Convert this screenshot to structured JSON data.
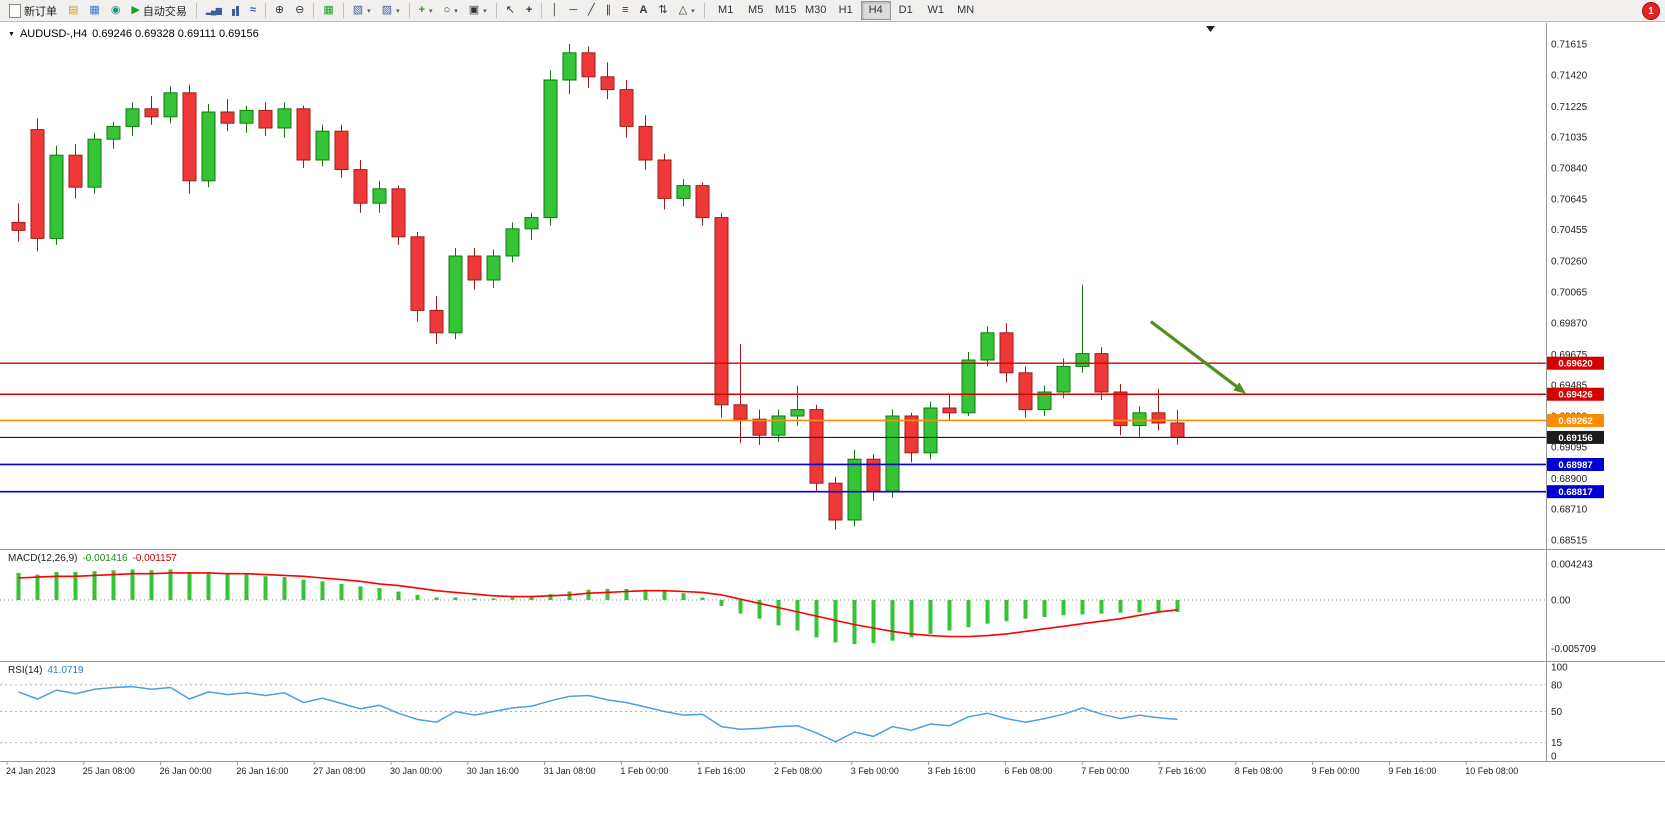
{
  "toolbar": {
    "new_order_label": "新订单",
    "autotrading_label": "自动交易",
    "badge_count": "1",
    "timeframes": [
      "M1",
      "M5",
      "M15",
      "M30",
      "H1",
      "H4",
      "D1",
      "W1",
      "MN"
    ],
    "active_timeframe": "H4"
  },
  "icons": {
    "market_watch": "▤",
    "data_window": "▦",
    "navigator": "◉",
    "autotrading_play": "▶",
    "bar_chart": "▂▄▆",
    "line_chart": "≈",
    "zoom_in": "⊕",
    "zoom_out": "⊖",
    "tile_windows": "▦",
    "new_chart": "▧",
    "profiles": "▨",
    "indicators_plus": "+",
    "periods_clock": "○",
    "templates": "▣",
    "cursor": "↖",
    "crosshair": "+",
    "vertical_line": "│",
    "horizontal_line": "─",
    "trendline": "╱",
    "channel": "∥",
    "fibonacci": "≡",
    "text_tool": "A",
    "arrows_tool": "⇅",
    "shapes_tool": "△",
    "dropdown_arrow": "▾",
    "collapse_arrow": "▼",
    "shift_marker": "▼"
  },
  "chart": {
    "symbol_period": "AUDUSD-,H4",
    "ohlc": "0.69246 0.69328 0.69111 0.69156"
  },
  "macd": {
    "label": "MACD(12,26,9)",
    "value_main": "-0.001416",
    "value_signal": "-0.001157"
  },
  "rsi": {
    "label": "RSI(14)",
    "value": "41.0719"
  },
  "chart_data": {
    "type": "candlestick",
    "symbol": "AUDUSD",
    "timeframe": "H4",
    "y_range": [
      0.68515,
      0.71615
    ],
    "y_ticks": [
      "0.71615",
      "0.71420",
      "0.71225",
      "0.71035",
      "0.70840",
      "0.70645",
      "0.70455",
      "0.70260",
      "0.70065",
      "0.69870",
      "0.69675",
      "0.69485",
      "0.69290",
      "0.69095",
      "0.68900",
      "0.68710",
      "0.68515"
    ],
    "x_labels": [
      "24 Jan 2023",
      "25 Jan 08:00",
      "26 Jan 00:00",
      "26 Jan 16:00",
      "27 Jan 08:00",
      "30 Jan 00:00",
      "30 Jan 16:00",
      "31 Jan 08:00",
      "1 Feb 00:00",
      "1 Feb 16:00",
      "2 Feb 08:00",
      "3 Feb 00:00",
      "3 Feb 16:00",
      "6 Feb 08:00",
      "7 Feb 00:00",
      "7 Feb 16:00",
      "8 Feb 08:00",
      "9 Feb 00:00",
      "9 Feb 16:00",
      "10 Feb 08:00"
    ],
    "colors": {
      "up": "#35c435",
      "up_border": "#0e7a0e",
      "down": "#ef3838",
      "down_border": "#9e1b1b",
      "macd_histogram": "#35c435",
      "macd_signal": "#ff0000",
      "rsi_line": "#4aa0e6",
      "arrow": "#4e8f1f"
    },
    "candles": [
      [
        0.705,
        0.7062,
        0.7038,
        0.7045
      ],
      [
        0.7108,
        0.7115,
        0.7032,
        0.704
      ],
      [
        0.704,
        0.7098,
        0.7036,
        0.7092
      ],
      [
        0.7092,
        0.7099,
        0.7065,
        0.7072
      ],
      [
        0.7072,
        0.7106,
        0.7068,
        0.7102
      ],
      [
        0.7102,
        0.7113,
        0.7096,
        0.711
      ],
      [
        0.711,
        0.7125,
        0.7104,
        0.7121
      ],
      [
        0.7121,
        0.7129,
        0.7111,
        0.7116
      ],
      [
        0.7116,
        0.7135,
        0.7112,
        0.7131
      ],
      [
        0.7131,
        0.7136,
        0.7068,
        0.7076
      ],
      [
        0.7076,
        0.7124,
        0.7072,
        0.7119
      ],
      [
        0.7119,
        0.7127,
        0.7107,
        0.7112
      ],
      [
        0.7112,
        0.7123,
        0.7106,
        0.712
      ],
      [
        0.712,
        0.7125,
        0.7104,
        0.7109
      ],
      [
        0.7109,
        0.7125,
        0.7103,
        0.7121
      ],
      [
        0.7121,
        0.7123,
        0.7084,
        0.7089
      ],
      [
        0.7089,
        0.7111,
        0.7085,
        0.7107
      ],
      [
        0.7107,
        0.7111,
        0.7078,
        0.7083
      ],
      [
        0.7083,
        0.7089,
        0.7056,
        0.7062
      ],
      [
        0.7062,
        0.7076,
        0.7056,
        0.7071
      ],
      [
        0.7071,
        0.7073,
        0.7036,
        0.7041
      ],
      [
        0.7041,
        0.7044,
        0.6988,
        0.6995
      ],
      [
        0.6995,
        0.7004,
        0.6974,
        0.6981
      ],
      [
        0.6981,
        0.7034,
        0.6977,
        0.7029
      ],
      [
        0.7029,
        0.7034,
        0.7008,
        0.7014
      ],
      [
        0.7014,
        0.7033,
        0.7009,
        0.7029
      ],
      [
        0.7029,
        0.705,
        0.7025,
        0.7046
      ],
      [
        0.7046,
        0.7056,
        0.7039,
        0.7053
      ],
      [
        0.7053,
        0.7145,
        0.7048,
        0.7139
      ],
      [
        0.7139,
        0.71615,
        0.713,
        0.7156
      ],
      [
        0.7156,
        0.716,
        0.7134,
        0.7141
      ],
      [
        0.7141,
        0.715,
        0.7127,
        0.7133
      ],
      [
        0.7133,
        0.7139,
        0.7103,
        0.711
      ],
      [
        0.711,
        0.7117,
        0.7083,
        0.7089
      ],
      [
        0.7089,
        0.7093,
        0.7058,
        0.7065
      ],
      [
        0.7065,
        0.7077,
        0.706,
        0.7073
      ],
      [
        0.7073,
        0.7075,
        0.7048,
        0.7053
      ],
      [
        0.7053,
        0.7056,
        0.6928,
        0.6936
      ],
      [
        0.6936,
        0.6974,
        0.6912,
        0.6927
      ],
      [
        0.6927,
        0.6933,
        0.6911,
        0.6917
      ],
      [
        0.6917,
        0.6933,
        0.6913,
        0.6929
      ],
      [
        0.6929,
        0.6948,
        0.6923,
        0.6933
      ],
      [
        0.6933,
        0.6936,
        0.6882,
        0.6887
      ],
      [
        0.6887,
        0.6891,
        0.6858,
        0.6864
      ],
      [
        0.6864,
        0.6908,
        0.686,
        0.6902
      ],
      [
        0.6902,
        0.6905,
        0.6876,
        0.6882
      ],
      [
        0.6882,
        0.6933,
        0.6878,
        0.6929
      ],
      [
        0.6929,
        0.6931,
        0.69,
        0.6906
      ],
      [
        0.6906,
        0.6938,
        0.6902,
        0.6934
      ],
      [
        0.6934,
        0.6943,
        0.6926,
        0.6931
      ],
      [
        0.6931,
        0.6969,
        0.6929,
        0.6964
      ],
      [
        0.6964,
        0.6985,
        0.696,
        0.6981
      ],
      [
        0.6981,
        0.6987,
        0.695,
        0.6956
      ],
      [
        0.6956,
        0.696,
        0.6928,
        0.6933
      ],
      [
        0.6933,
        0.6948,
        0.6929,
        0.6944
      ],
      [
        0.6944,
        0.6965,
        0.694,
        0.696
      ],
      [
        0.696,
        0.7011,
        0.6956,
        0.6968
      ],
      [
        0.6968,
        0.6972,
        0.6939,
        0.6944
      ],
      [
        0.6944,
        0.6949,
        0.6917,
        0.6923
      ],
      [
        0.6923,
        0.6935,
        0.6915,
        0.6931
      ],
      [
        0.6931,
        0.6946,
        0.692,
        0.69246
      ],
      [
        0.69246,
        0.69328,
        0.69111,
        0.69156
      ]
    ],
    "hlines": [
      {
        "price": 0.6962,
        "label": "0.69620",
        "color": "#d40000",
        "width": 1.4,
        "role": "resistance"
      },
      {
        "price": 0.69426,
        "label": "0.69426",
        "color": "#d40000",
        "width": 1.4,
        "role": "resistance"
      },
      {
        "price": 0.69262,
        "label": "0.69262",
        "color": "#ff8c00",
        "width": 1.6,
        "role": "level"
      },
      {
        "price": 0.69156,
        "label": "0.69156",
        "color": "#1c1c1c",
        "width": 1.2,
        "role": "current-price"
      },
      {
        "price": 0.68987,
        "label": "0.68987",
        "color": "#0000d4",
        "width": 1.6,
        "role": "support"
      },
      {
        "price": 0.68817,
        "label": "0.68817",
        "color": "#0000d4",
        "width": 1.6,
        "role": "support"
      }
    ],
    "arrow": {
      "from": {
        "t": 59.6,
        "price": 0.6988
      },
      "to": {
        "t": 64.6,
        "price": 0.6943
      },
      "width": 3.2
    },
    "macd": {
      "axis": [
        "0.004243",
        "0.00",
        "-0.005709"
      ],
      "histogram": [
        0.0032,
        0.003,
        0.0033,
        0.0033,
        0.0034,
        0.0035,
        0.0036,
        0.0035,
        0.0036,
        0.0033,
        0.0032,
        0.0031,
        0.003,
        0.0028,
        0.0027,
        0.0024,
        0.0022,
        0.0019,
        0.0016,
        0.0014,
        0.001,
        0.0006,
        0.0003,
        0.0003,
        0.0002,
        0.0002,
        0.0003,
        0.0004,
        0.0007,
        0.001,
        0.0012,
        0.0013,
        0.0013,
        0.0012,
        0.001,
        0.0008,
        0.0003,
        -0.0007,
        -0.0016,
        -0.0022,
        -0.003,
        -0.0036,
        -0.0044,
        -0.005,
        -0.0052,
        -0.0051,
        -0.0048,
        -0.0044,
        -0.004,
        -0.0036,
        -0.0032,
        -0.0028,
        -0.0025,
        -0.0022,
        -0.002,
        -0.0018,
        -0.0017,
        -0.0016,
        -0.0015,
        -0.00145,
        -0.00142,
        -0.001416
      ],
      "signal": [
        0.0026,
        0.0027,
        0.0028,
        0.0028,
        0.0029,
        0.003,
        0.0031,
        0.0031,
        0.0032,
        0.0032,
        0.0032,
        0.0031,
        0.0031,
        0.003,
        0.0029,
        0.0028,
        0.0026,
        0.0024,
        0.0022,
        0.0019,
        0.0017,
        0.0014,
        0.0011,
        0.0009,
        0.0007,
        0.0005,
        0.0004,
        0.0004,
        0.0005,
        0.0006,
        0.0008,
        0.0009,
        0.001,
        0.0011,
        0.0011,
        0.001,
        0.0009,
        0.0006,
        0.0001,
        -0.0004,
        -0.0009,
        -0.0014,
        -0.0019,
        -0.0024,
        -0.0029,
        -0.0033,
        -0.0037,
        -0.004,
        -0.0042,
        -0.0043,
        -0.0043,
        -0.0042,
        -0.004,
        -0.0037,
        -0.0034,
        -0.0031,
        -0.0028,
        -0.0025,
        -0.0022,
        -0.0018,
        -0.0014,
        -0.001157
      ]
    },
    "rsi": {
      "axis": [
        "100",
        "80",
        "50",
        "15",
        "0"
      ],
      "levels": [
        80,
        50,
        15
      ],
      "values": [
        72,
        64,
        74,
        70,
        75,
        77,
        78,
        75,
        77,
        64,
        72,
        69,
        71,
        68,
        71,
        60,
        65,
        59,
        53,
        57,
        48,
        41,
        38,
        50,
        46,
        50,
        54,
        56,
        62,
        67,
        68,
        63,
        60,
        55,
        50,
        46,
        47,
        33,
        30,
        31,
        33,
        34,
        26,
        16,
        27,
        22,
        33,
        29,
        36,
        34,
        44,
        48,
        42,
        38,
        42,
        47,
        54,
        47,
        42,
        46,
        43,
        41.07
      ]
    }
  }
}
